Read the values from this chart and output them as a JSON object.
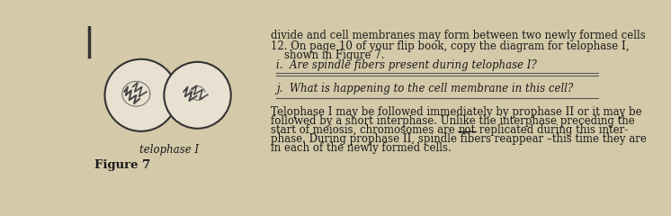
{
  "background_color": "#d4c9a8",
  "top_text": "divide and cell membranes may form between two newly formed cells",
  "question_12_a": "12. On page 10 of your flip book, copy the diagram for telophase I,",
  "question_12_b": "    shown in Figure 7.",
  "question_i": "i.  Are spindle fibers present during telophase I?",
  "question_j": "j.  What is happening to the cell membrane in this cell?",
  "label_telophase": "telophase I",
  "label_figure": "Figure 7",
  "para_line1": "Telophase I may be followed immediately by prophase II or it may be",
  "para_line2": "followed by a short interphase. Unlike the interphase preceding the",
  "para_line3_before": "start of meiosis, chromosomes are ",
  "para_line3_not": "not",
  "para_line3_after": " replicated during this inter-",
  "para_line4": "phase. During prophase II, spindle fibers reappear –this time they are",
  "para_line5": "in each of the newly formed cells.",
  "text_color": "#1a1a1a",
  "font_size_body": 8.5,
  "font_size_label": 8.5,
  "font_size_figure": 9.5
}
